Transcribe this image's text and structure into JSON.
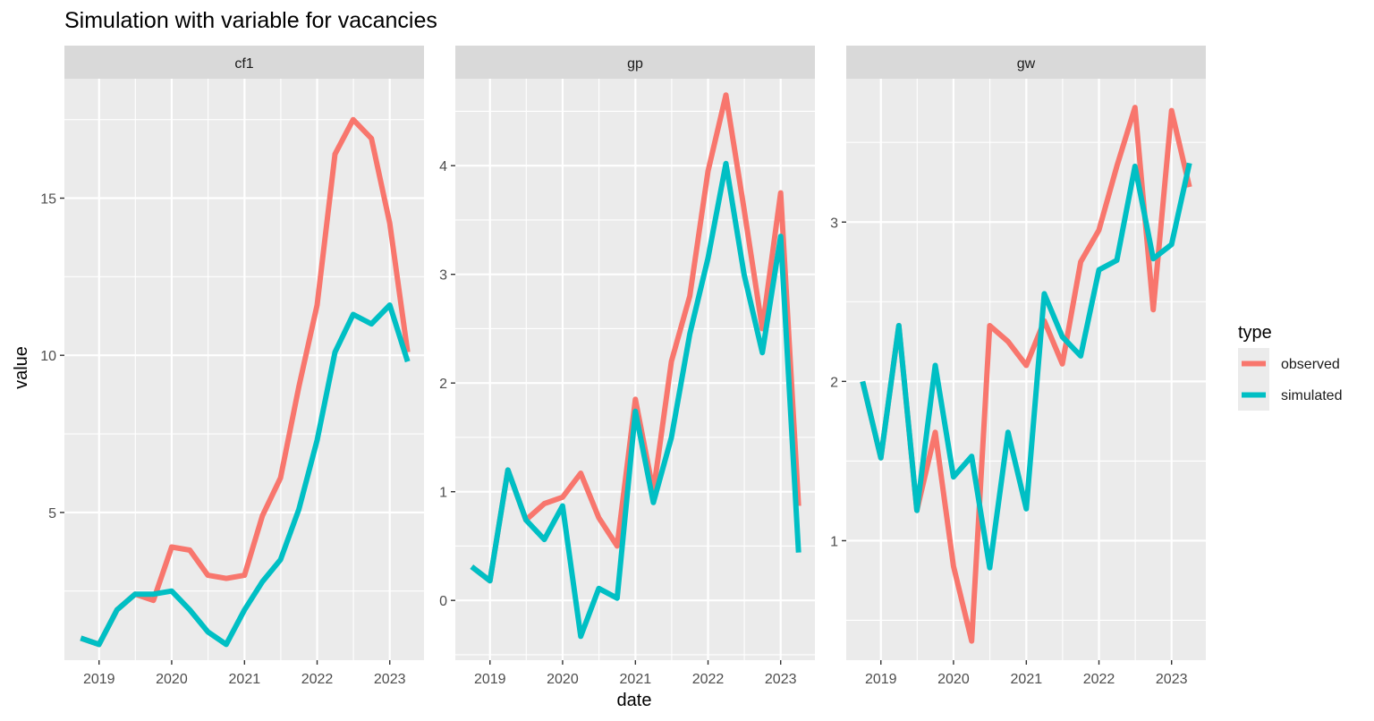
{
  "colors": {
    "observed": "#F8766D",
    "simulated": "#00BFC4"
  },
  "chart_data": {
    "type": "line",
    "title": "Simulation with variable for vacancies",
    "xlabel": "date",
    "ylabel": "value",
    "legend": {
      "title": "type",
      "placement": "right",
      "entries": [
        "observed",
        "simulated"
      ]
    },
    "x": [
      "2018-10-01",
      "2019-01-01",
      "2019-04-01",
      "2019-07-01",
      "2019-10-01",
      "2020-01-01",
      "2020-04-01",
      "2020-07-01",
      "2020-10-01",
      "2021-01-01",
      "2021-04-01",
      "2021-07-01",
      "2021-10-01",
      "2022-01-01",
      "2022-04-01",
      "2022-07-01",
      "2022-10-01",
      "2023-01-01",
      "2023-04-01"
    ],
    "x_ticks": [
      "2019",
      "2020",
      "2021",
      "2022",
      "2023"
    ],
    "panels": [
      {
        "name": "cf1",
        "ylim": [
          0.3,
          18.8
        ],
        "y_ticks": [
          5,
          10,
          15
        ],
        "series": [
          {
            "name": "observed",
            "values": [
              1.0,
              0.8,
              1.9,
              2.4,
              2.2,
              3.9,
              3.8,
              3.0,
              2.9,
              3.0,
              4.9,
              6.1,
              9.0,
              11.6,
              16.4,
              17.5,
              16.9,
              14.2,
              10.1
            ]
          },
          {
            "name": "simulated",
            "values": [
              1.0,
              0.8,
              1.9,
              2.4,
              2.4,
              2.5,
              1.9,
              1.2,
              0.8,
              1.9,
              2.8,
              3.5,
              5.1,
              7.3,
              10.1,
              11.3,
              11.0,
              11.6,
              9.8
            ]
          }
        ]
      },
      {
        "name": "gp",
        "ylim": [
          -0.55,
          4.8
        ],
        "y_ticks": [
          0,
          1,
          2,
          3,
          4
        ],
        "series": [
          {
            "name": "observed",
            "values": [
              0.31,
              0.18,
              1.2,
              0.74,
              0.89,
              0.95,
              1.17,
              0.76,
              0.5,
              1.85,
              1.0,
              2.2,
              2.8,
              3.95,
              4.65,
              3.6,
              2.5,
              3.75,
              0.87
            ]
          },
          {
            "name": "simulated",
            "values": [
              0.31,
              0.18,
              1.2,
              0.74,
              0.56,
              0.87,
              -0.33,
              0.11,
              0.02,
              1.74,
              0.9,
              1.5,
              2.45,
              3.15,
              4.02,
              3.0,
              2.28,
              3.35,
              0.44
            ]
          }
        ]
      },
      {
        "name": "gw",
        "ylim": [
          0.25,
          3.9
        ],
        "y_ticks": [
          1,
          2,
          3
        ],
        "series": [
          {
            "name": "observed",
            "values": [
              2.0,
              1.52,
              2.35,
              1.19,
              1.68,
              0.84,
              0.37,
              2.35,
              2.25,
              2.1,
              2.38,
              2.11,
              2.75,
              2.95,
              3.35,
              3.72,
              2.45,
              3.7,
              3.22
            ]
          },
          {
            "name": "simulated",
            "values": [
              2.0,
              1.52,
              2.35,
              1.19,
              2.1,
              1.4,
              1.53,
              0.83,
              1.68,
              1.2,
              2.55,
              2.28,
              2.16,
              2.7,
              2.76,
              3.35,
              2.77,
              2.86,
              3.37
            ]
          }
        ]
      }
    ]
  }
}
